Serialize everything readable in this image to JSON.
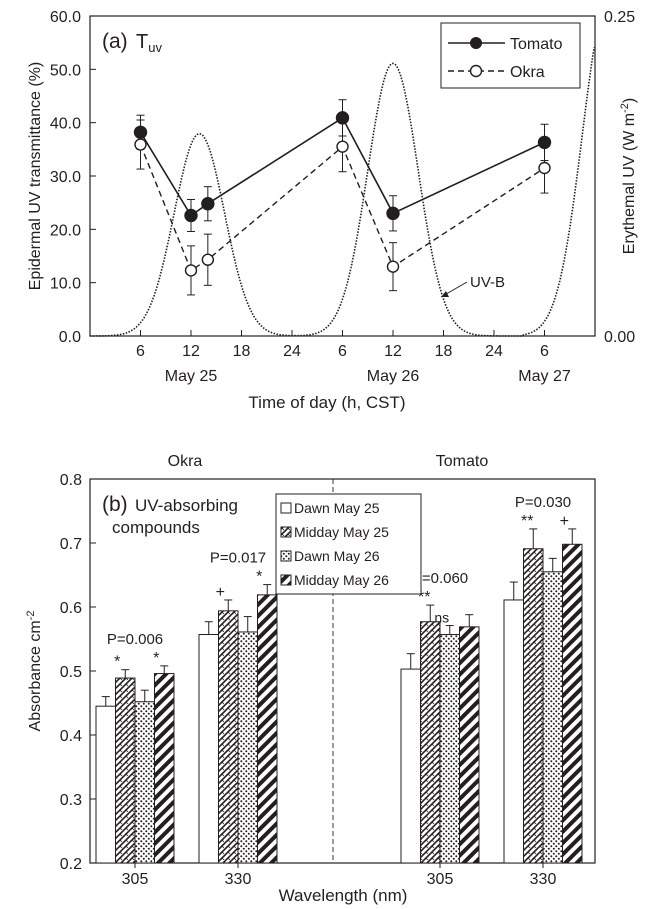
{
  "chart_data": [
    {
      "type": "line",
      "panel_label": "(a)",
      "panel_title_main": "T",
      "panel_title_sub": "uv",
      "xlabel": "Time of day (h, CST)",
      "ylabel": "Epidermal UV transmittance (%)",
      "y2label_main": "Erythemal UV (W m",
      "y2label_sup": "-2",
      "y2label_close": ")",
      "xlim": [
        0,
        60
      ],
      "ylim": [
        0,
        60
      ],
      "y2lim": [
        0,
        0.25
      ],
      "x_ticks": [
        6,
        12,
        18,
        24,
        30,
        36,
        42,
        48,
        54
      ],
      "x_tick_labels": [
        "6",
        "12",
        "18",
        "24",
        "6",
        "12",
        "18",
        "24",
        "6"
      ],
      "y_ticks": [
        0,
        10,
        20,
        30,
        40,
        50,
        60
      ],
      "y_tick_labels": [
        "0.0",
        "10.0",
        "20.0",
        "30.0",
        "40.0",
        "50.0",
        "60.0"
      ],
      "y2_ticks": [
        0,
        0.25
      ],
      "y2_tick_labels": [
        "0.00",
        "0.25"
      ],
      "day_labels": [
        {
          "x": 12,
          "label": "May 25"
        },
        {
          "x": 36,
          "label": "May 26"
        },
        {
          "x": 54,
          "label": "May 27"
        }
      ],
      "legend": {
        "position": "top-right",
        "entries": [
          "Tomato",
          "Okra"
        ]
      },
      "series": [
        {
          "name": "Tomato",
          "style": "solid",
          "marker": "filled-circle",
          "x": [
            6,
            12,
            14,
            30,
            36,
            54
          ],
          "y": [
            38.2,
            22.6,
            24.8,
            40.9,
            23.0,
            36.3
          ],
          "err": [
            3.2,
            3.0,
            3.2,
            3.4,
            3.3,
            3.4
          ]
        },
        {
          "name": "Okra",
          "style": "dashed",
          "marker": "open-circle",
          "x": [
            6,
            12,
            14,
            30,
            36,
            54
          ],
          "y": [
            35.9,
            12.3,
            14.3,
            35.5,
            13.0,
            31.5
          ],
          "err": [
            4.6,
            4.6,
            4.8,
            4.7,
            4.5,
            4.7
          ]
        }
      ],
      "uvb_curve": {
        "name": "UV-B",
        "peaks": [
          {
            "center": 13,
            "width": 3.0,
            "amplitude": 0.158
          },
          {
            "center": 36,
            "width": 3.0,
            "amplitude": 0.213
          },
          {
            "center": 61.5,
            "width": 3.0,
            "amplitude": 0.26
          }
        ],
        "baseline_until": 51.5
      },
      "annotation": {
        "text": "UV-B"
      }
    },
    {
      "type": "bar",
      "panel_label": "(b)",
      "panel_title_line1": "UV-absorbing",
      "panel_title_line2": "compounds",
      "xlabel": "Wavelength (nm)",
      "ylabel_main": "Absorbance cm",
      "ylabel_sup": "-2",
      "ylim": [
        0.2,
        0.8
      ],
      "y_ticks": [
        0.2,
        0.3,
        0.4,
        0.5,
        0.6,
        0.7,
        0.8
      ],
      "y_tick_labels": [
        "0.2",
        "0.3",
        "0.4",
        "0.5",
        "0.6",
        "0.7",
        "0.8"
      ],
      "groups": [
        {
          "species": "Okra",
          "wavelength": "305",
          "values": [
            0.445,
            0.489,
            0.452,
            0.496
          ],
          "err": [
            0.015,
            0.013,
            0.018,
            0.012
          ],
          "marks": [
            "",
            "*",
            "",
            "*"
          ],
          "pvalue": "P=0.006"
        },
        {
          "species": "Okra",
          "wavelength": "330",
          "values": [
            0.557,
            0.594,
            0.561,
            0.619
          ],
          "err": [
            0.02,
            0.017,
            0.024,
            0.016
          ],
          "marks": [
            "",
            "+",
            "",
            "*"
          ],
          "pvalue": "P=0.017"
        },
        {
          "species": "Tomato",
          "wavelength": "305",
          "values": [
            0.503,
            0.577,
            0.557,
            0.569
          ],
          "err": [
            0.024,
            0.026,
            0.014,
            0.019
          ],
          "marks": [
            "",
            "**",
            "ns",
            ""
          ],
          "pvalue": "P=0.060"
        },
        {
          "species": "Tomato",
          "wavelength": "330",
          "values": [
            0.611,
            0.691,
            0.655,
            0.698
          ],
          "err": [
            0.028,
            0.031,
            0.021,
            0.024
          ],
          "marks": [
            "",
            "**",
            "",
            "+"
          ],
          "pvalue": "P=0.030"
        }
      ],
      "species_labels": [
        "Okra",
        "Tomato"
      ],
      "legend": {
        "position": "top-center",
        "entries": [
          "Dawn May 25",
          "Midday May 25",
          "Dawn May 26",
          "Midday May 26"
        ]
      },
      "bar_patterns": [
        "white",
        "wave",
        "dots",
        "diagonal"
      ]
    }
  ]
}
